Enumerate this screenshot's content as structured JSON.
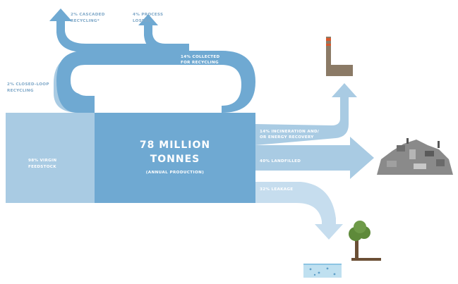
{
  "colors": {
    "main_flow": "#6fa9d2",
    "light_flow": "#a9cbe3",
    "pale_flow": "#c6ddee",
    "virgin_block": "#a9cbe3",
    "factory": "#8b7a66",
    "chimney_band": "#d9572b",
    "rubbish": "#8a8a8a",
    "tree_canopy": "#5e8a3a",
    "trunk": "#6b4f35",
    "water": "#bfe0f0"
  },
  "icons": [
    "factory-icon",
    "landfill-icon",
    "tree-icon",
    "ocean-icon"
  ],
  "labels": {
    "cascaded_line1": "2% CASCADED",
    "cascaded_line2": "RECYCLING*",
    "process_line1": "4% PROCESS",
    "process_line2": "LOSSES",
    "collected_line1": "14% COLLECTED",
    "collected_line2": "FOR RECYCLING",
    "closed_loop_line1": "2% CLOSED-LOOP",
    "closed_loop_line2": "RECYCLING",
    "virgin_line1": "98% VIRGIN",
    "virgin_line2": "FEEDSTOCK",
    "main_line1": "78 MILLION",
    "main_line2": "TONNES",
    "main_sub": "(ANNUAL PRODUCTION)",
    "incineration_line1": "14% INCINERATION AND/",
    "incineration_line2": "OR ENERGY RECOVERY",
    "landfilled": "40% LANDFILLED",
    "leakage": "32% LEAKAGE"
  }
}
